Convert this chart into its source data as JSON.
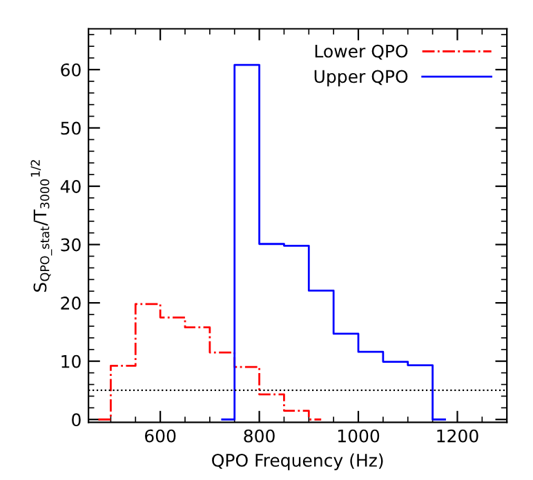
{
  "chart_data": {
    "type": "step",
    "xlabel": "QPO Frequency (Hz)",
    "ylabel": "S$_{QPO_stat}$/T$_{3000}$$^{1/2}$",
    "series": [
      {
        "name": "Lower QPO",
        "color": "#ff0000",
        "line_style": "dashdot",
        "x": [
          475,
          500,
          550,
          600,
          650,
          700,
          750,
          800,
          850,
          900,
          925
        ],
        "values": [
          0,
          9.2,
          19.8,
          17.5,
          15.8,
          11.5,
          9.0,
          4.3,
          1.5,
          0,
          0
        ]
      },
      {
        "name": "Upper QPO",
        "color": "#0000ff",
        "line_style": "solid",
        "x": [
          725,
          750,
          800,
          850,
          900,
          950,
          1000,
          1050,
          1100,
          1150,
          1175
        ],
        "values": [
          0,
          60.8,
          30.1,
          29.8,
          22.1,
          14.7,
          11.6,
          9.9,
          9.3,
          0,
          0
        ]
      }
    ],
    "ref_lines": [
      {
        "axis": "y",
        "value": 5,
        "color": "#000000",
        "line_style": "dotted"
      }
    ],
    "xlim": [
      455,
      1300
    ],
    "xticks": [
      600,
      800,
      1000,
      1200
    ],
    "ylim": [
      -0.5,
      67
    ],
    "yticks": [
      0,
      10,
      20,
      30,
      40,
      50,
      60
    ],
    "grid": false,
    "legend": "top right"
  }
}
